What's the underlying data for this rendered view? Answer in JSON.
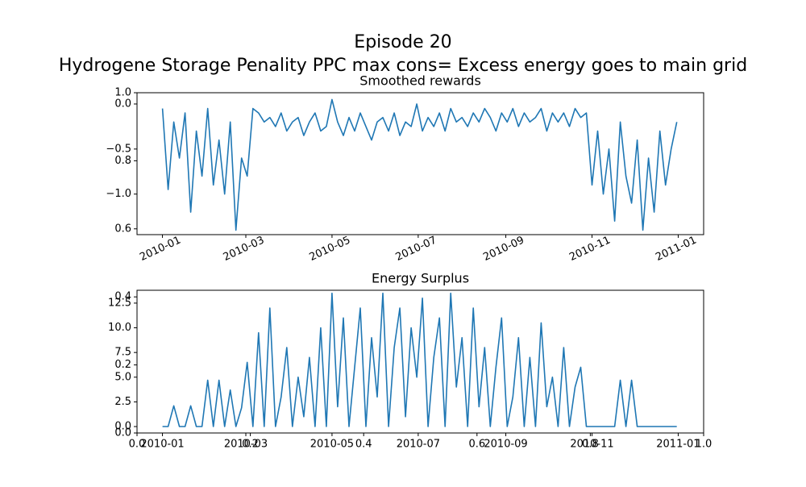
{
  "chart_data": [
    {
      "type": "axes",
      "title": [
        "Episode 20",
        "Hydrogene Storage Penality  PPC max cons= Excess energy goes to main grid"
      ],
      "xlim": [
        0,
        1
      ],
      "ylim": [
        0,
        1
      ],
      "xticks": [
        {
          "value": 0,
          "label": "0.0"
        },
        0.2,
        0.4,
        0.6,
        0.8,
        {
          "value": 1,
          "label": "1.0"
        }
      ],
      "yticks": [
        {
          "value": 0,
          "label": "0.0"
        },
        0.2,
        0.4,
        0.6,
        0.8,
        {
          "value": 1,
          "label": "1.0"
        }
      ]
    },
    {
      "type": "line",
      "title": "Smoothed rewards",
      "x": [
        14610,
        14614,
        14618,
        14622,
        14626,
        14630,
        14634,
        14638,
        14642,
        14646,
        14650,
        14654,
        14658,
        14662,
        14666,
        14670,
        14674,
        14678,
        14682,
        14686,
        14690,
        14694,
        14698,
        14702,
        14706,
        14710,
        14714,
        14718,
        14722,
        14726,
        14730,
        14734,
        14738,
        14742,
        14746,
        14750,
        14754,
        14758,
        14762,
        14766,
        14770,
        14774,
        14778,
        14782,
        14786,
        14790,
        14794,
        14798,
        14802,
        14806,
        14810,
        14814,
        14818,
        14822,
        14826,
        14830,
        14834,
        14838,
        14842,
        14846,
        14850,
        14854,
        14858,
        14862,
        14866,
        14870,
        14874,
        14878,
        14882,
        14886,
        14890,
        14894,
        14898,
        14902,
        14906,
        14910,
        14914,
        14918,
        14922,
        14926,
        14930,
        14934,
        14938,
        14942,
        14946,
        14950,
        14954,
        14958,
        14962,
        14966,
        14970,
        14974
      ],
      "series": [
        {
          "color": "#1f77b4",
          "values": [
            -0.05,
            -0.95,
            -0.2,
            -0.6,
            -0.1,
            -1.2,
            -0.3,
            -0.8,
            -0.05,
            -0.9,
            -0.4,
            -1.0,
            -0.2,
            -1.4,
            -0.6,
            -0.8,
            -0.05,
            -0.1,
            -0.2,
            -0.15,
            -0.25,
            -0.1,
            -0.3,
            -0.2,
            -0.15,
            -0.35,
            -0.2,
            -0.1,
            -0.3,
            -0.25,
            0.05,
            -0.2,
            -0.35,
            -0.15,
            -0.3,
            -0.1,
            -0.25,
            -0.4,
            -0.2,
            -0.15,
            -0.3,
            -0.1,
            -0.35,
            -0.2,
            -0.25,
            0.0,
            -0.3,
            -0.15,
            -0.25,
            -0.1,
            -0.3,
            -0.05,
            -0.2,
            -0.15,
            -0.25,
            -0.1,
            -0.2,
            -0.05,
            -0.15,
            -0.3,
            -0.1,
            -0.2,
            -0.05,
            -0.25,
            -0.1,
            -0.2,
            -0.15,
            -0.05,
            -0.3,
            -0.1,
            -0.2,
            -0.1,
            -0.25,
            -0.05,
            -0.15,
            -0.1,
            -0.9,
            -0.3,
            -1.0,
            -0.5,
            -1.3,
            -0.2,
            -0.8,
            -1.1,
            -0.4,
            -1.4,
            -0.6,
            -1.2,
            -0.3,
            -0.9,
            -0.5,
            -0.2
          ]
        }
      ],
      "xlim": [
        14592,
        14993
      ],
      "ylim": [
        -1.45,
        0.125
      ],
      "xticks": [
        {
          "value": 14610,
          "label": "2010-01"
        },
        {
          "value": 14669,
          "label": "2010-03"
        },
        {
          "value": 14730,
          "label": "2010-05"
        },
        {
          "value": 14791,
          "label": "2010-07"
        },
        {
          "value": 14853,
          "label": "2010-09"
        },
        {
          "value": 14914,
          "label": "2010-11"
        },
        {
          "value": 14975,
          "label": "2011-01"
        }
      ],
      "yticks": [
        {
          "value": 0,
          "label": "0.0"
        },
        {
          "value": -0.5,
          "label": "−0.5"
        },
        {
          "value": -1,
          "label": "−1.0"
        }
      ]
    },
    {
      "type": "line",
      "title": "Energy Surplus",
      "x": [
        14610,
        14614,
        14618,
        14622,
        14626,
        14630,
        14634,
        14638,
        14642,
        14646,
        14650,
        14654,
        14658,
        14662,
        14666,
        14670,
        14674,
        14678,
        14682,
        14686,
        14690,
        14694,
        14698,
        14702,
        14706,
        14710,
        14714,
        14718,
        14722,
        14726,
        14730,
        14734,
        14738,
        14742,
        14746,
        14750,
        14754,
        14758,
        14762,
        14766,
        14770,
        14774,
        14778,
        14782,
        14786,
        14790,
        14794,
        14798,
        14802,
        14806,
        14810,
        14814,
        14818,
        14822,
        14826,
        14830,
        14834,
        14838,
        14842,
        14846,
        14850,
        14854,
        14858,
        14862,
        14866,
        14870,
        14874,
        14878,
        14882,
        14886,
        14890,
        14894,
        14898,
        14902,
        14906,
        14910,
        14914,
        14918,
        14922,
        14926,
        14930,
        14934,
        14938,
        14942,
        14946,
        14950,
        14954,
        14958,
        14962,
        14966,
        14970,
        14974
      ],
      "series": [
        {
          "color": "#1f77b4",
          "values": [
            0,
            0,
            2.1,
            0,
            0,
            2.1,
            0,
            0,
            4.7,
            0,
            4.7,
            0,
            3.7,
            0,
            1.9,
            6.5,
            0,
            9.5,
            0,
            12,
            0,
            3,
            8,
            0,
            5,
            1,
            7,
            0,
            10,
            0,
            13.5,
            2,
            11,
            0,
            6,
            12,
            0,
            9,
            3,
            13.5,
            0,
            8,
            12,
            1,
            10,
            5,
            13,
            0,
            7,
            11,
            0,
            13.5,
            4,
            9,
            0,
            12,
            2,
            8,
            0,
            6,
            11,
            0,
            3,
            9,
            0,
            7,
            0,
            10.5,
            2,
            5,
            0,
            8,
            0,
            4,
            6,
            0,
            0,
            0,
            0,
            0,
            0,
            4.7,
            0,
            4.7,
            0,
            0,
            0,
            0,
            0,
            0,
            0,
            0
          ]
        }
      ],
      "xlim": [
        14592,
        14993
      ],
      "ylim": [
        -0.65,
        13.8
      ],
      "xticks": [
        {
          "value": 14610,
          "label": "2010-01"
        },
        {
          "value": 14669,
          "label": "2010-03"
        },
        {
          "value": 14730,
          "label": "2010-05"
        },
        {
          "value": 14791,
          "label": "2010-07"
        },
        {
          "value": 14853,
          "label": "2010-09"
        },
        {
          "value": 14914,
          "label": "2010-11"
        },
        {
          "value": 14975,
          "label": "2011-01"
        }
      ],
      "yticks": [
        {
          "value": 0,
          "label": "0.0"
        },
        2.5,
        {
          "value": 5,
          "label": "5.0"
        },
        7.5,
        {
          "value": 10,
          "label": "10.0"
        },
        12.5
      ]
    }
  ]
}
